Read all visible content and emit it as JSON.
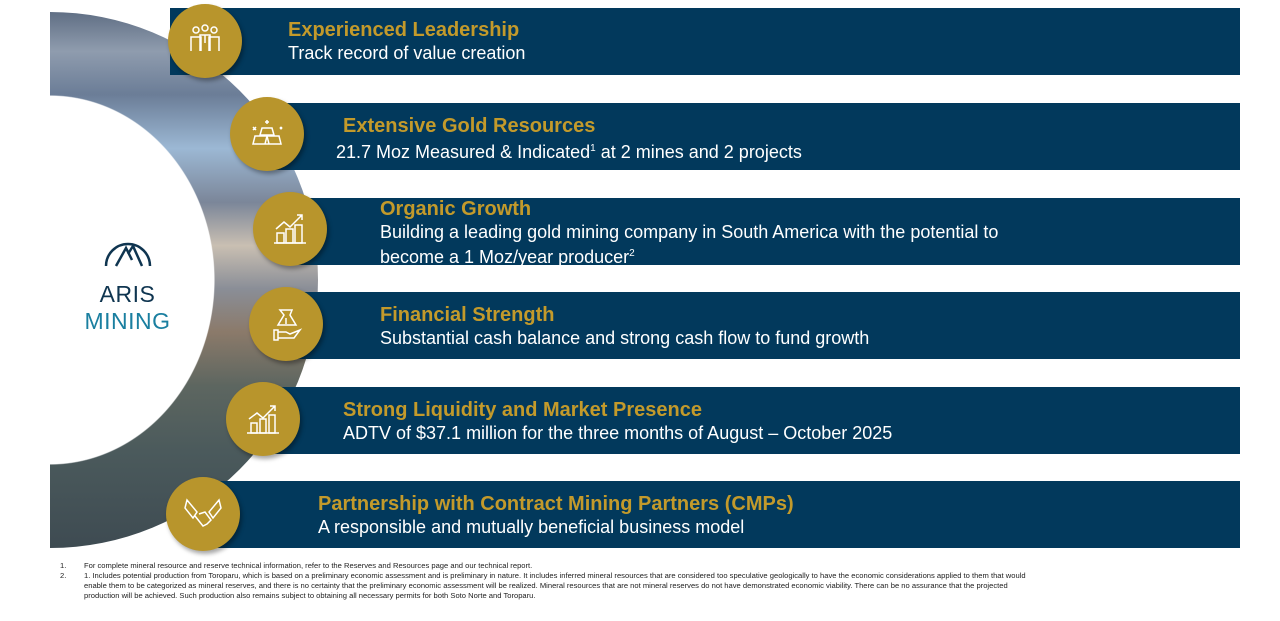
{
  "brand": {
    "name_part1": "ARIS",
    "name_part2": "MINING",
    "color_dark": "#0f3550",
    "color_teal": "#1a7fa0"
  },
  "colors": {
    "band": "#02395c",
    "gold": "#b8952c"
  },
  "items": [
    {
      "icon": "leadership-team-icon",
      "title": "Experienced Leadership",
      "subtitle": "Track record of value creation"
    },
    {
      "icon": "gold-bars-icon",
      "title": "Extensive Gold Resources",
      "subtitle": "21.7 Moz Measured & Indicated",
      "sup": "1",
      "subtitle_end": " at 2 mines and 2 projects"
    },
    {
      "icon": "coins-growth-icon",
      "title": "Organic Growth",
      "subtitle": "Building a leading gold mining company in South America with the potential to",
      "subtitle2": "become a 1 Moz/year producer",
      "sup": "2"
    },
    {
      "icon": "money-bag-hand-icon",
      "title": "Financial Strength",
      "subtitle": "Substantial cash balance and strong cash flow to fund growth"
    },
    {
      "icon": "bar-chart-growth-icon",
      "title": "Strong Liquidity and Market Presence",
      "subtitle": "ADTV of $37.1 million for the three months of August – October 2025"
    },
    {
      "icon": "handshake-icon",
      "title": "Partnership with Contract Mining Partners (CMPs)",
      "subtitle": "A responsible and mutually beneficial business model"
    }
  ],
  "footnotes": [
    {
      "num": "1.",
      "text": "For complete mineral resource and reserve technical information, refer to the Reserves and Resources page and our technical report."
    },
    {
      "num": "2.",
      "text": "1. Includes potential production from Toroparu, which is based on a preliminary economic assessment and is preliminary in nature. It includes inferred mineral resources that are considered too speculative geologically to have the economic considerations applied to them that would enable them to be categorized as mineral reserves, and there is no certainty that the preliminary economic assessment will be realized. Mineral resources that are not mineral reserves do not have demonstrated economic viability. There can be no assurance that the projected production will be achieved. Such production also remains subject to obtaining all necessary permits for both Soto Norte and Toroparu."
    }
  ]
}
